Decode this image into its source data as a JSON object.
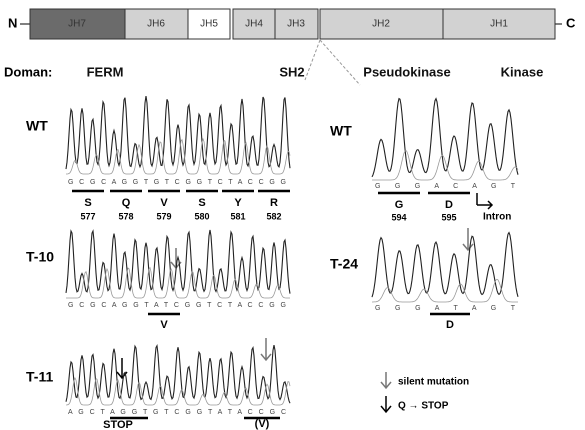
{
  "protein_map": {
    "n_term": "N",
    "c_term": "C",
    "segments": [
      "JH7",
      "JH6",
      "JH5",
      "JH4",
      "JH3",
      "JH2",
      "JH1"
    ],
    "domain_label": "Doman:",
    "domains": [
      "FERM",
      "SH2",
      "Pseudokinase",
      "Kinase"
    ]
  },
  "panels": [
    {
      "label": "WT",
      "bases": "G C G C A G G T G T C G G T C T A C C G G",
      "codons": [
        {
          "aa": "S",
          "position": 577
        },
        {
          "aa": "Q",
          "position": 578
        },
        {
          "aa": "V",
          "position": 579
        },
        {
          "aa": "S",
          "position": 580
        },
        {
          "aa": "Y",
          "position": 581
        },
        {
          "aa": "R",
          "position": 582
        }
      ]
    },
    {
      "label": "T-10",
      "bases": "G C G C A G G T A T C G G T C T A C C G G",
      "codons": [
        {
          "aa": "V"
        }
      ]
    },
    {
      "label": "T-11",
      "bases": "A G C T A G G T G T C G G T A T A C C G C",
      "codons": [
        {
          "aa": "STOP"
        },
        {
          "aa": "(V)"
        }
      ]
    },
    {
      "label": "WT",
      "bases": "G G G A C A G T",
      "codons": [
        {
          "aa": "G",
          "position": 594
        },
        {
          "aa": "D",
          "position": 595
        }
      ],
      "note": "Intron"
    },
    {
      "label": "T-24",
      "bases": "G G G A T A G T",
      "codons": [
        {
          "aa": "D"
        }
      ]
    }
  ],
  "legend": {
    "silent": "silent mutation",
    "nonsense": "Q → STOP"
  }
}
